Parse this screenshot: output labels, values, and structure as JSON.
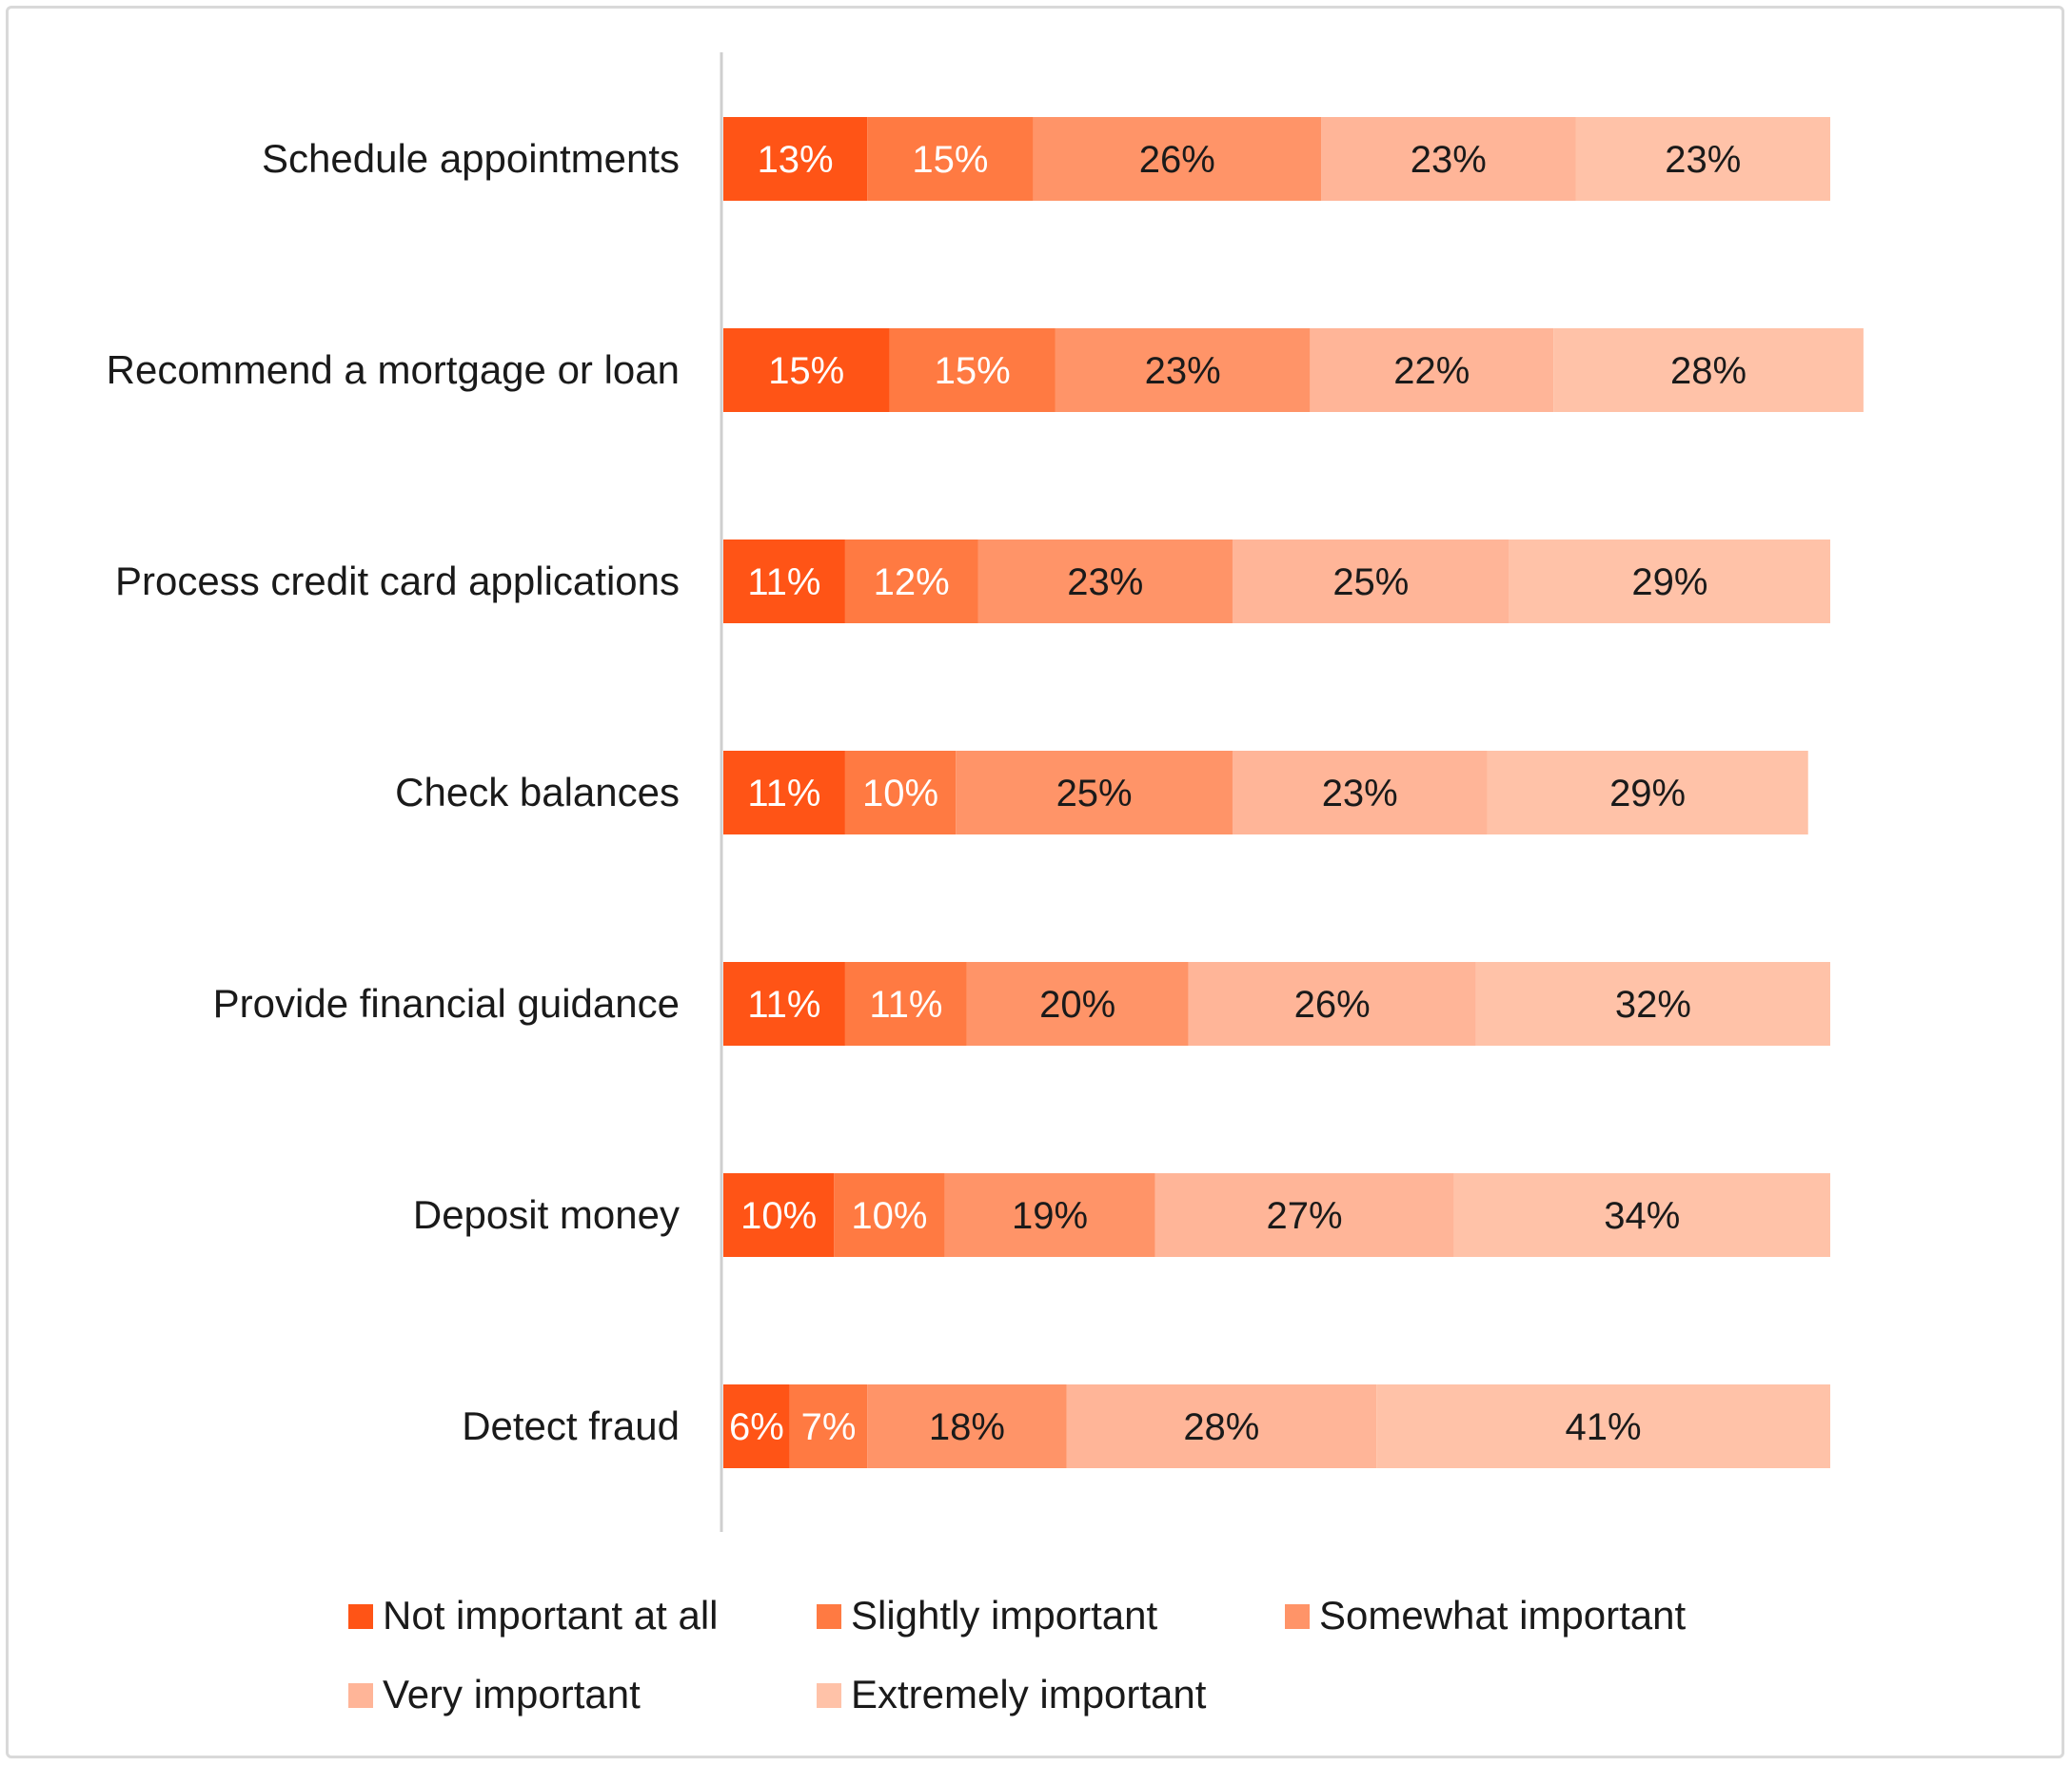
{
  "chart_data": {
    "type": "bar",
    "orientation": "horizontal",
    "stacked": true,
    "categories": [
      "Schedule appointments",
      "Recommend a mortgage or loan",
      "Process credit card applications",
      "Check balances",
      "Provide financial guidance",
      "Deposit money",
      "Detect fraud"
    ],
    "series": [
      {
        "name": "Not important at all",
        "color": "#ff5416",
        "label_color": "#ffffff",
        "values": [
          13,
          15,
          11,
          11,
          11,
          10,
          6
        ]
      },
      {
        "name": "Slightly important",
        "color": "#ff7a42",
        "label_color": "#ffffff",
        "values": [
          15,
          15,
          12,
          10,
          11,
          10,
          7
        ]
      },
      {
        "name": "Somewhat important",
        "color": "#ff9468",
        "label_color": "#1a1a1a",
        "values": [
          26,
          23,
          23,
          25,
          20,
          19,
          18
        ]
      },
      {
        "name": "Very important",
        "color": "#ffb598",
        "label_color": "#1a1a1a",
        "values": [
          23,
          22,
          25,
          23,
          26,
          27,
          28
        ]
      },
      {
        "name": "Extremely important",
        "color": "#ffc2a8",
        "label_color": "#1a1a1a",
        "values": [
          23,
          28,
          29,
          29,
          32,
          34,
          41
        ]
      }
    ],
    "value_suffix": "%",
    "legend_position": "bottom",
    "grid": false,
    "title": "",
    "xlabel": "",
    "ylabel": ""
  }
}
